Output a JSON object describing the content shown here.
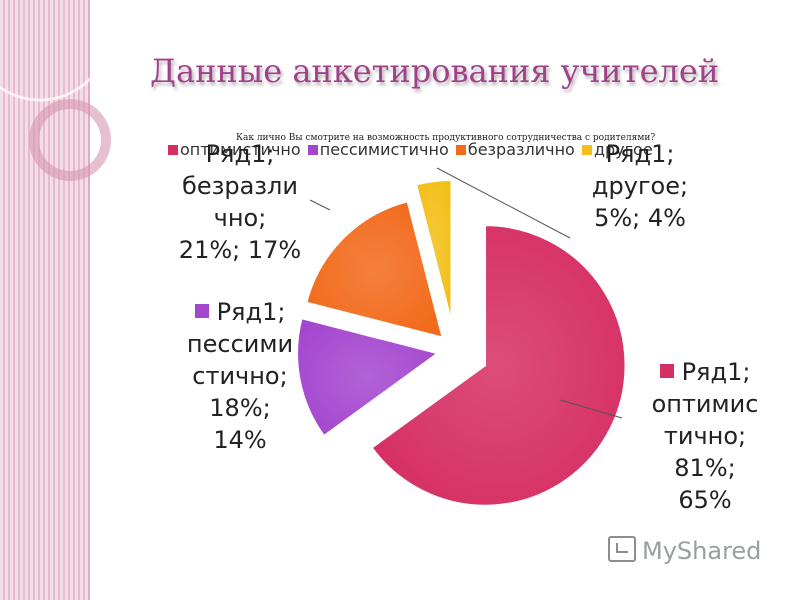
{
  "slide": {
    "title": "Данные анкетирования учителей",
    "watermark": "MyShared"
  },
  "colors": {
    "background": "#ffffff",
    "band_light": "#f3dde6",
    "band_dark": "#e6bccd",
    "title": "#a0428a"
  },
  "chart_data": {
    "type": "pie",
    "title": "Как лично Вы смотрите на возможность продуктивного сотрудничества с родителями?",
    "categories": [
      "оптимистично",
      "пессимистично",
      "безразлично",
      "другое"
    ],
    "series": [
      {
        "name": "Ряд1",
        "values": [
          65,
          14,
          17,
          4
        ]
      },
      {
        "name": "Ряд1",
        "values": [
          81,
          18,
          21,
          5
        ]
      }
    ],
    "labels": [
      "Ряд1; оптимис тично; 81%; 65%",
      "Ряд1; пессими стично; 18%; 14%",
      "Ряд1; безразли чно; 21%; 17%",
      "Ряд1; другое; 5%; 4%"
    ],
    "colors": [
      "#d62e63",
      "#a447cf",
      "#f26a1b",
      "#f3bf18"
    ],
    "legend": "top",
    "exploded": true
  }
}
